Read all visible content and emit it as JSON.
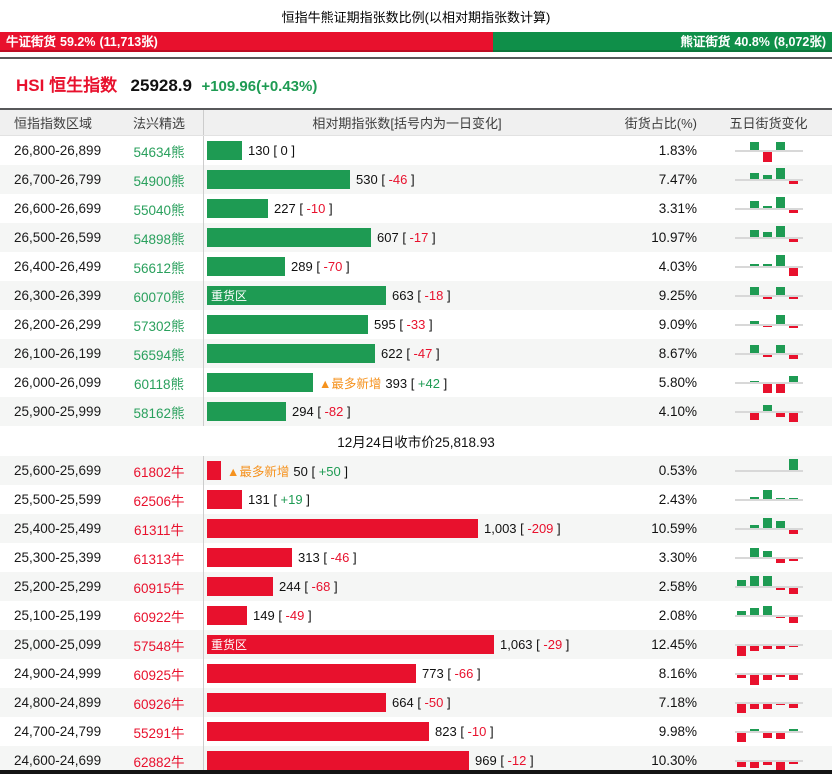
{
  "page_title": "恒指牛熊证期指张数比例(以相对期指张数计算)",
  "ratio_bar": {
    "bull": {
      "label": "牛证街货",
      "pct": "59.2%",
      "count": "(11,713张)",
      "pct_value": 59.2
    },
    "bear": {
      "label": "熊证街货",
      "pct": "40.8%",
      "count": "(8,072张)",
      "pct_value": 40.8
    }
  },
  "index_quote": {
    "symbol": "HSI",
    "name": "恒生指数",
    "price": "25928.9",
    "change": "+109.96(+0.43%)"
  },
  "table": {
    "headers": [
      "恒指指数区域",
      "法兴精选",
      "相对期指张数[括号内为一日变化]",
      "街货占比(%)",
      "五日街货变化"
    ],
    "labels": {
      "heavy_zone": "重货区",
      "most_new": "▲最多新增",
      "bear_suffix": "熊",
      "bull_suffix": "牛"
    },
    "divider_text": "12月24日收市价25,818.93",
    "bear_rows": [
      {
        "range": "26,800-26,899",
        "code": "54634",
        "value": "130",
        "value_num": 130,
        "change": "0",
        "pct": "1.83%",
        "spark": [
          0,
          8,
          -10,
          8,
          0
        ]
      },
      {
        "range": "26,700-26,799",
        "code": "54900",
        "value": "530",
        "value_num": 530,
        "change": "-46",
        "pct": "7.47%",
        "spark": [
          0,
          6,
          4,
          11,
          -3
        ]
      },
      {
        "range": "26,600-26,699",
        "code": "55040",
        "value": "227",
        "value_num": 227,
        "change": "-10",
        "pct": "3.31%",
        "spark": [
          0,
          7,
          2,
          11,
          -3
        ]
      },
      {
        "range": "26,500-26,599",
        "code": "54898",
        "value": "607",
        "value_num": 607,
        "change": "-17",
        "pct": "10.97%",
        "spark": [
          0,
          7,
          5,
          11,
          -3
        ]
      },
      {
        "range": "26,400-26,499",
        "code": "56612",
        "value": "289",
        "value_num": 289,
        "change": "-70",
        "pct": "4.03%",
        "spark": [
          0,
          2,
          2,
          11,
          -8
        ]
      },
      {
        "range": "26,300-26,399",
        "code": "60070",
        "value": "663",
        "value_num": 663,
        "change": "-18",
        "pct": "9.25%",
        "heavy": true,
        "spark": [
          0,
          8,
          -2,
          8,
          -2
        ]
      },
      {
        "range": "26,200-26,299",
        "code": "57302",
        "value": "595",
        "value_num": 595,
        "change": "-33",
        "pct": "9.09%",
        "spark": [
          0,
          3,
          -1,
          9,
          -2
        ]
      },
      {
        "range": "26,100-26,199",
        "code": "56594",
        "value": "622",
        "value_num": 622,
        "change": "-47",
        "pct": "8.67%",
        "spark": [
          0,
          8,
          -2,
          8,
          -4
        ]
      },
      {
        "range": "26,000-26,099",
        "code": "60118",
        "value": "393",
        "value_num": 393,
        "change": "+42",
        "pct": "5.80%",
        "most_new": true,
        "spark": [
          0,
          1,
          -9,
          -9,
          6
        ]
      },
      {
        "range": "25,900-25,999",
        "code": "58162",
        "value": "294",
        "value_num": 294,
        "change": "-82",
        "pct": "4.10%",
        "spark": [
          0,
          -7,
          6,
          -4,
          -9
        ]
      }
    ],
    "bull_rows": [
      {
        "range": "25,600-25,699",
        "code": "61802",
        "value": "50",
        "value_num": 50,
        "change": "+50",
        "pct": "0.53%",
        "most_new": true,
        "spark": [
          0,
          0,
          0,
          0,
          11
        ]
      },
      {
        "range": "25,500-25,599",
        "code": "62506",
        "value": "131",
        "value_num": 131,
        "change": "+19",
        "pct": "2.43%",
        "spark": [
          0,
          2,
          9,
          1,
          1
        ]
      },
      {
        "range": "25,400-25,499",
        "code": "61311",
        "value": "1,003",
        "value_num": 1003,
        "change": "-209",
        "pct": "10.59%",
        "spark": [
          0,
          3,
          10,
          7,
          -4
        ]
      },
      {
        "range": "25,300-25,399",
        "code": "61313",
        "value": "313",
        "value_num": 313,
        "change": "-46",
        "pct": "3.30%",
        "spark": [
          0,
          9,
          6,
          -4,
          -2
        ]
      },
      {
        "range": "25,200-25,299",
        "code": "60915",
        "value": "244",
        "value_num": 244,
        "change": "-68",
        "pct": "2.58%",
        "spark": [
          6,
          10,
          10,
          -2,
          -6
        ]
      },
      {
        "range": "25,100-25,199",
        "code": "60922",
        "value": "149",
        "value_num": 149,
        "change": "-49",
        "pct": "2.08%",
        "spark": [
          4,
          7,
          9,
          -1,
          -6
        ]
      },
      {
        "range": "25,000-25,099",
        "code": "57548",
        "value": "1,063",
        "value_num": 1063,
        "change": "-29",
        "pct": "12.45%",
        "heavy": true,
        "spark": [
          -10,
          -5,
          -3,
          -3,
          -1
        ]
      },
      {
        "range": "24,900-24,999",
        "code": "60925",
        "value": "773",
        "value_num": 773,
        "change": "-66",
        "pct": "8.16%",
        "spark": [
          -3,
          -10,
          -5,
          -2,
          -5
        ]
      },
      {
        "range": "24,800-24,899",
        "code": "60926",
        "value": "664",
        "value_num": 664,
        "change": "-50",
        "pct": "7.18%",
        "spark": [
          -9,
          -5,
          -5,
          -1,
          -4
        ]
      },
      {
        "range": "24,700-24,799",
        "code": "55291",
        "value": "823",
        "value_num": 823,
        "change": "-10",
        "pct": "9.98%",
        "spark": [
          -9,
          2,
          -5,
          -6,
          2
        ]
      },
      {
        "range": "24,600-24,699",
        "code": "62882",
        "value": "969",
        "value_num": 969,
        "change": "-12",
        "pct": "10.30%",
        "spark": [
          -5,
          -6,
          -3,
          -10,
          -2
        ]
      }
    ]
  },
  "colors": {
    "bull_red": "#e8112d",
    "bear_green": "#1e9b53",
    "banner_green": "#0f8f49",
    "orange": "#f5921e",
    "row_alt": "#f5f6f5",
    "code_green": "#2aa05d"
  },
  "chart_data": {
    "type": "bar",
    "title": "恒指牛熊证期指张数比例(以相对期指张数计算)",
    "xlabel": "恒指指数区域",
    "ylabel": "相对期指张数",
    "legend_position": "none",
    "series": [
      {
        "name": "熊证",
        "color": "#1e9b53",
        "categories": [
          "26,800-26,899",
          "26,700-26,799",
          "26,600-26,699",
          "26,500-26,599",
          "26,400-26,499",
          "26,300-26,399",
          "26,200-26,299",
          "26,100-26,199",
          "26,000-26,099",
          "25,900-25,999"
        ],
        "values": [
          130,
          530,
          227,
          607,
          289,
          663,
          595,
          622,
          393,
          294
        ],
        "one_day_change": [
          0,
          -46,
          -10,
          -17,
          -70,
          -18,
          -33,
          -47,
          42,
          -82
        ],
        "outstanding_pct": [
          1.83,
          7.47,
          3.31,
          10.97,
          4.03,
          9.25,
          9.09,
          8.67,
          5.8,
          4.1
        ]
      },
      {
        "name": "牛证",
        "color": "#e8112d",
        "categories": [
          "25,600-25,699",
          "25,500-25,599",
          "25,400-25,499",
          "25,300-25,399",
          "25,200-25,299",
          "25,100-25,199",
          "25,000-25,099",
          "24,900-24,999",
          "24,800-24,899",
          "24,700-24,799",
          "24,600-24,699"
        ],
        "values": [
          50,
          131,
          1003,
          313,
          244,
          149,
          1063,
          773,
          664,
          823,
          969
        ],
        "one_day_change": [
          50,
          19,
          -209,
          -46,
          -68,
          -49,
          -29,
          -66,
          -50,
          -10,
          -12
        ],
        "outstanding_pct": [
          0.53,
          2.43,
          10.59,
          3.3,
          2.58,
          2.08,
          12.45,
          8.16,
          7.18,
          9.98,
          10.3
        ]
      }
    ],
    "annotations": [
      "重货区(熊): 26,300-26,399",
      "重货区(牛): 25,000-25,099",
      "最多新增(熊): 26,000-26,099 [+42]",
      "最多新增(牛): 25,600-25,699 [+50]",
      "12月24日收市价25,818.93"
    ],
    "ratio": {
      "bull": "牛证街货 59.2% (11,713张)",
      "bear": "熊证街货 40.8% (8,072张)"
    }
  }
}
